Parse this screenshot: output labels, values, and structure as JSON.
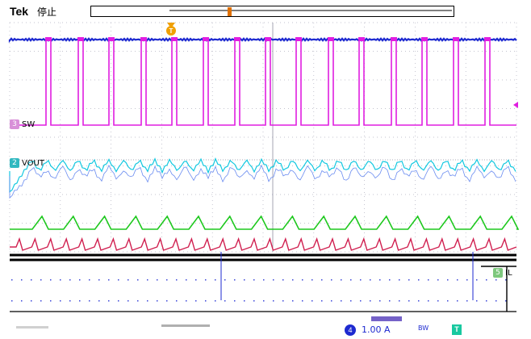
{
  "header": {
    "brand": "Tek",
    "status": "停止"
  },
  "channels": [
    {
      "id": "3",
      "label": "SW",
      "color": "#e01ee0"
    },
    {
      "id": "2",
      "label": "VOUT",
      "color": "#12c8e0"
    },
    {
      "id": "5",
      "label": "IL",
      "color": "#3cc83c"
    }
  ],
  "footer": {
    "channel_id": "4",
    "scale": "1.00 A",
    "bw_symbol": "BW",
    "trigger_marker": "T"
  },
  "colors": {
    "blue_trace": "#1e2ad0",
    "magenta_trace": "#e01ee0",
    "cyan_trace": "#12c8e0",
    "green_trace": "#1ec81e",
    "red_trace": "#d00000",
    "trigger_orange": "#f0a000",
    "grid": "#9a9ab0"
  }
}
